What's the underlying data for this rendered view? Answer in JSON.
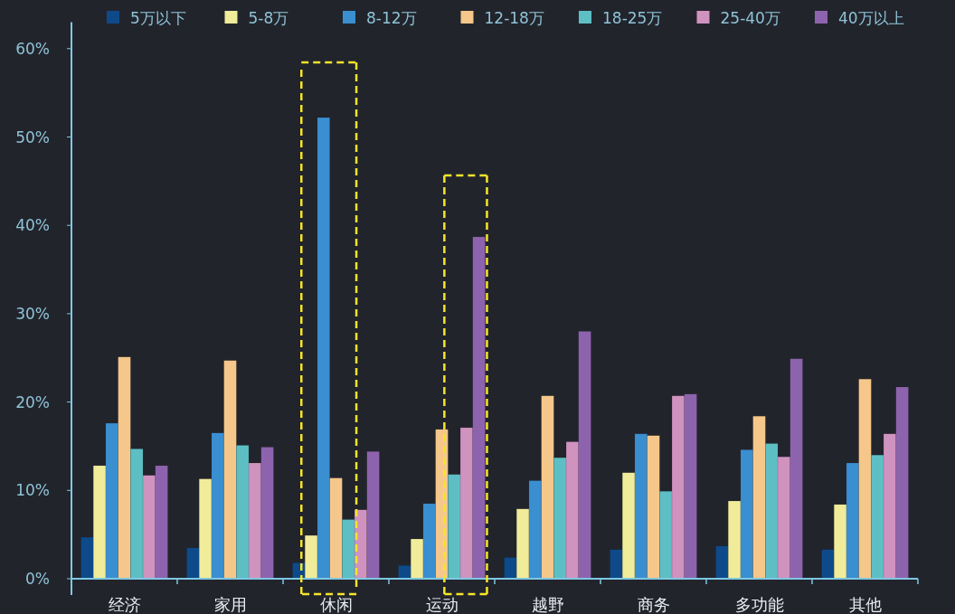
{
  "chart_data": {
    "type": "bar",
    "categories": [
      "经济",
      "家用",
      "休闲",
      "运动",
      "越野",
      "商务",
      "多功能",
      "其他"
    ],
    "ylim": [
      0,
      63
    ],
    "yticks": [
      {
        "value": 0,
        "label": "0%"
      },
      {
        "value": 10,
        "label": "10%"
      },
      {
        "value": 20,
        "label": "20%"
      },
      {
        "value": 30,
        "label": "30%"
      },
      {
        "value": 40,
        "label": "40%"
      },
      {
        "value": 50,
        "label": "50%"
      },
      {
        "value": 60,
        "label": "60%"
      }
    ],
    "legend": "top",
    "grid": false,
    "series": [
      {
        "name": "5万以下",
        "color": "#0e4a8a",
        "values": [
          4.7,
          3.5,
          1.8,
          1.5,
          2.4,
          3.3,
          3.7,
          3.3
        ]
      },
      {
        "name": "5-8万",
        "color": "#f0ec9a",
        "values": [
          12.8,
          11.3,
          4.9,
          4.5,
          7.9,
          12.0,
          8.8,
          8.4
        ]
      },
      {
        "name": "8-12万",
        "color": "#3a8fd0",
        "values": [
          17.6,
          16.5,
          52.2,
          8.5,
          11.1,
          16.4,
          14.6,
          13.1
        ]
      },
      {
        "name": "12-18万",
        "color": "#f6c78a",
        "values": [
          25.1,
          24.7,
          11.4,
          16.9,
          20.7,
          16.2,
          18.4,
          22.6
        ]
      },
      {
        "name": "18-25万",
        "color": "#5dbfc4",
        "values": [
          14.7,
          15.1,
          6.7,
          11.8,
          13.7,
          9.9,
          15.3,
          14.0
        ]
      },
      {
        "name": "25-40万",
        "color": "#d093c0",
        "values": [
          11.7,
          13.1,
          7.8,
          17.1,
          15.5,
          20.7,
          13.8,
          16.4
        ]
      },
      {
        "name": "40万以上",
        "color": "#8e63ad",
        "values": [
          12.8,
          14.9,
          14.4,
          38.7,
          28.0,
          20.9,
          24.9,
          21.7
        ]
      }
    ]
  }
}
